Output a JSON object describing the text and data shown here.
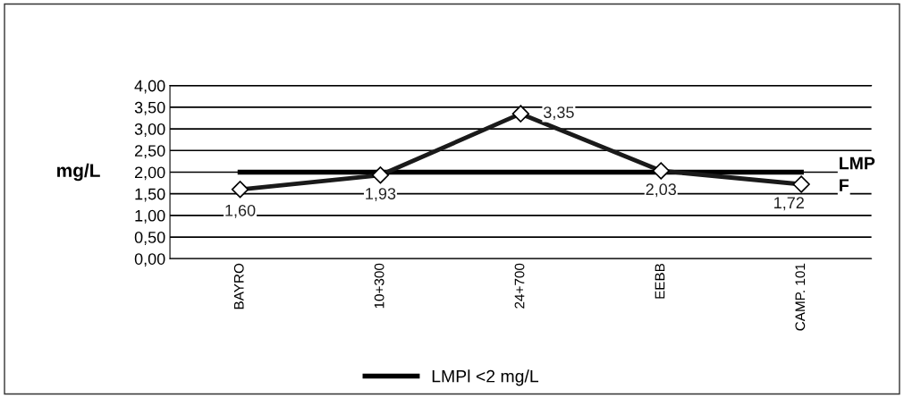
{
  "chart_data": {
    "type": "line",
    "ylabel": "mg/L",
    "categories": [
      "BAYRO",
      "10+300",
      "24+700",
      "EEBB",
      "CAMP. 101"
    ],
    "series": [
      {
        "name": "LMPl <2 mg/L",
        "color": "#000000",
        "values": [
          2.0,
          2.0,
          2.0,
          2.0,
          2.0
        ],
        "marker": "none"
      },
      {
        "color": "#1a1a1a",
        "values": [
          1.6,
          1.93,
          3.35,
          2.03,
          1.72
        ],
        "marker": "diamond",
        "value_labels": [
          "1,60",
          "1,93",
          "3,35",
          "2,03",
          "1,72"
        ]
      }
    ],
    "ylim": [
      0,
      4
    ],
    "yticks": [
      {
        "value": 0,
        "label": "0,00"
      },
      {
        "value": 0.5,
        "label": "0,50"
      },
      {
        "value": 1,
        "label": "1,00"
      },
      {
        "value": 1.5,
        "label": "1,50"
      },
      {
        "value": 2,
        "label": "2,00"
      },
      {
        "value": 2.5,
        "label": "2,50"
      },
      {
        "value": 3,
        "label": "3,00"
      },
      {
        "value": 3.5,
        "label": "3,50"
      },
      {
        "value": 4,
        "label": "4,00"
      }
    ],
    "annotations": [
      {
        "text": "LMP",
        "x": "CAMP. 101",
        "y": 2.0
      },
      {
        "text": "F",
        "x": "CAMP. 101",
        "y": 1.72
      }
    ],
    "grid": "y",
    "legend": "bottom",
    "line_style": "solid"
  }
}
